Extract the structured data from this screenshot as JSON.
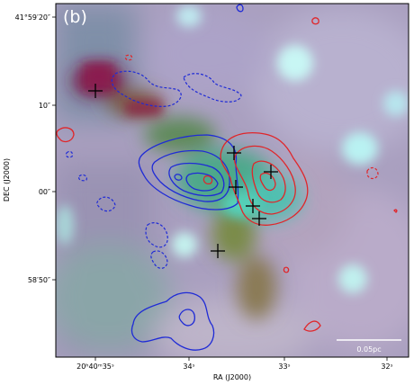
{
  "panel_label": "(b)",
  "axes": {
    "ylabel": "DEC (J2000)",
    "xlabel": "RA (J2000)",
    "yticks": [
      "41°59′20″",
      "10″",
      "00″",
      "58′50″"
    ],
    "xticks": [
      "20ʰ40ᵐ35ˢ",
      "34ˢ",
      "33ˢ",
      "32ˢ"
    ]
  },
  "scale_bar": {
    "label": "0.05pc"
  },
  "colors": {
    "blue_contour": "#1f2bd6",
    "red_contour": "#e0262a",
    "marker": "#000000",
    "scale_bar": "#ffffff"
  }
}
